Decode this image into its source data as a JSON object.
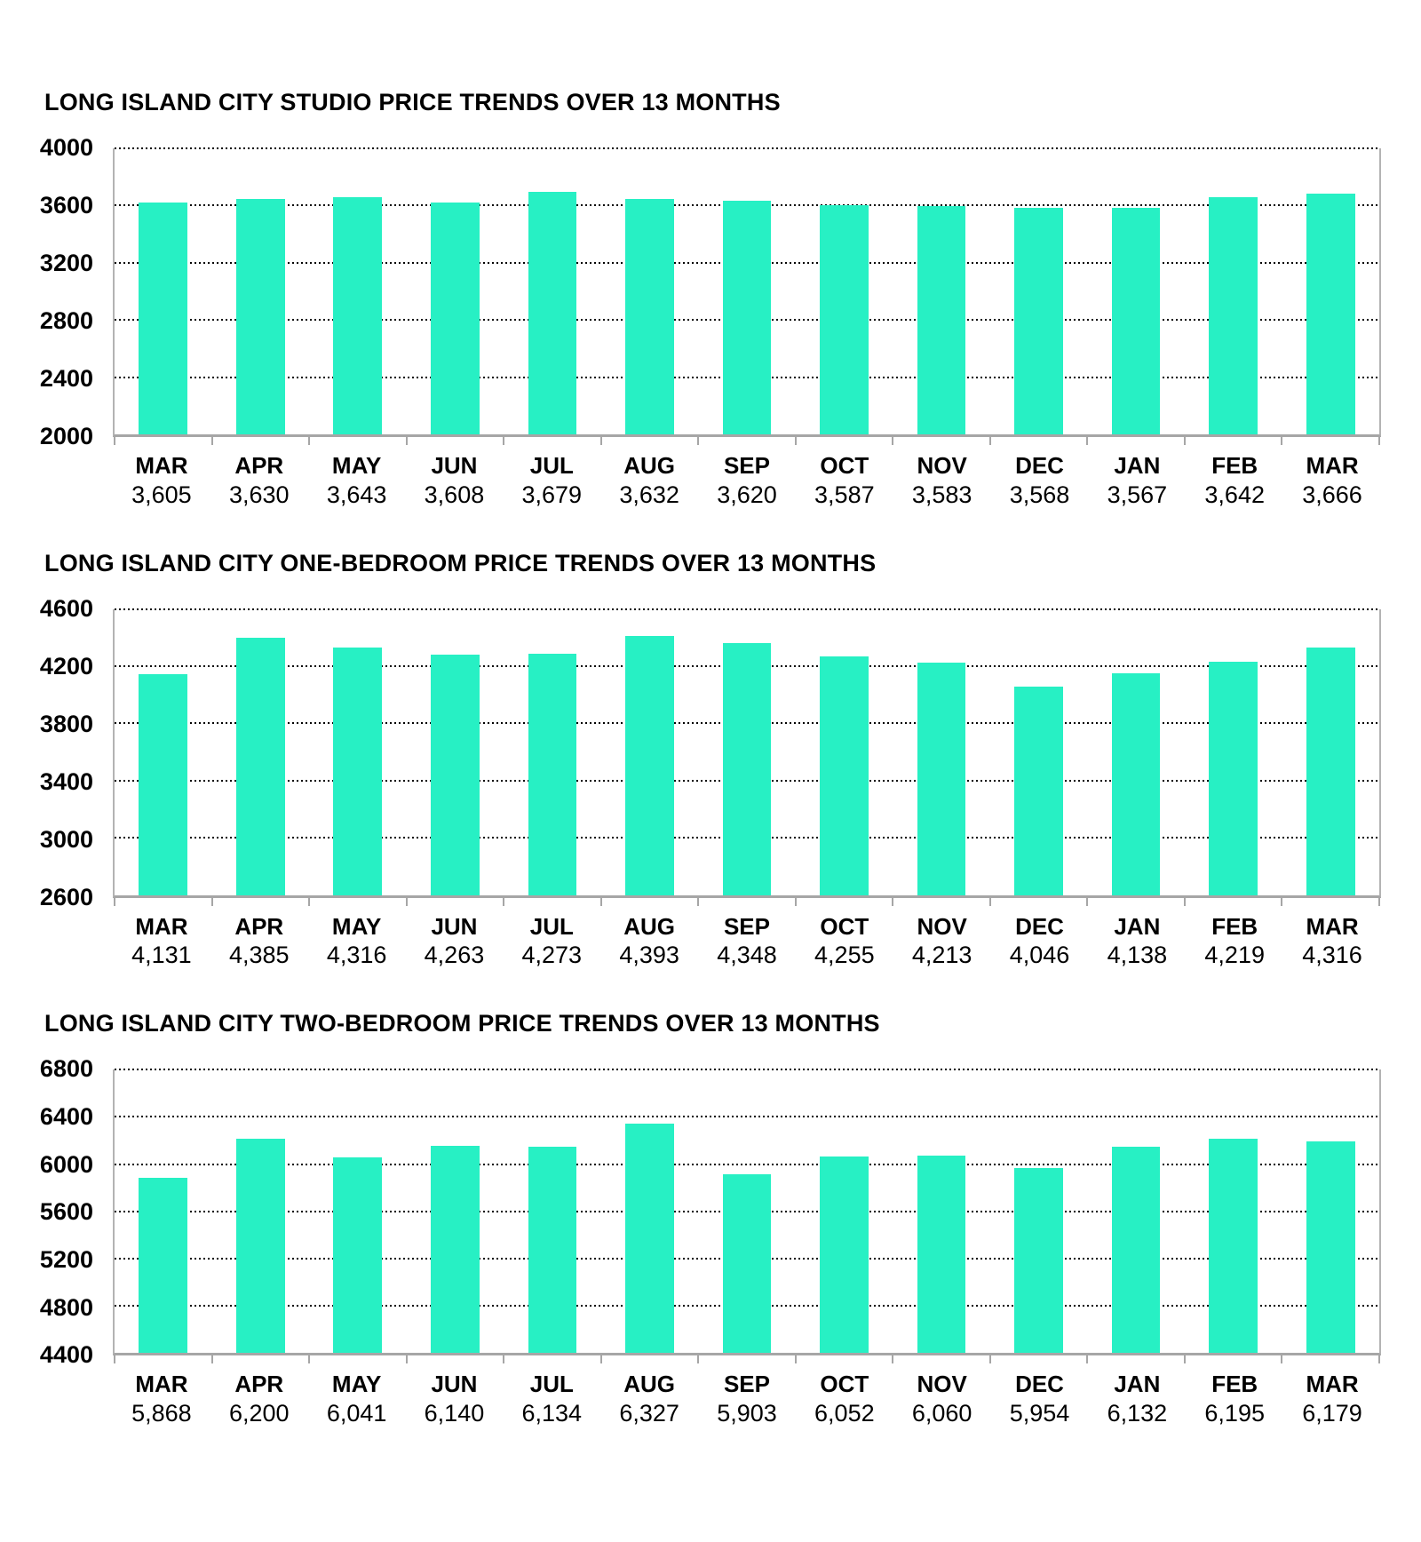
{
  "page": {
    "background": "#ffffff",
    "text_color": "#000000",
    "bar_color": "#27F0C4",
    "axis_color": "#A6A6A6",
    "grid_color": "#000000"
  },
  "chart_data": [
    {
      "type": "bar",
      "title": "LONG ISLAND CITY STUDIO PRICE TRENDS OVER 13 MONTHS",
      "categories": [
        "MAR",
        "APR",
        "MAY",
        "JUN",
        "JUL",
        "AUG",
        "SEP",
        "OCT",
        "NOV",
        "DEC",
        "JAN",
        "FEB",
        "MAR"
      ],
      "values": [
        3605,
        3630,
        3643,
        3608,
        3679,
        3632,
        3620,
        3587,
        3583,
        3568,
        3567,
        3642,
        3666
      ],
      "value_labels": [
        "3,605",
        "3,630",
        "3,643",
        "3,608",
        "3,679",
        "3,632",
        "3,620",
        "3,587",
        "3,583",
        "3,568",
        "3,567",
        "3,642",
        "3,666"
      ],
      "xlabel": "",
      "ylabel": "",
      "ylim": [
        2000,
        4000
      ],
      "yticks": [
        4000,
        3600,
        3200,
        2800,
        2400,
        2000
      ],
      "grid": "dotted-horizontal",
      "legend": "none",
      "bar_color": "#27F0C4"
    },
    {
      "type": "bar",
      "title": "LONG ISLAND CITY ONE-BEDROOM PRICE TRENDS OVER 13 MONTHS",
      "categories": [
        "MAR",
        "APR",
        "MAY",
        "JUN",
        "JUL",
        "AUG",
        "SEP",
        "OCT",
        "NOV",
        "DEC",
        "JAN",
        "FEB",
        "MAR"
      ],
      "values": [
        4131,
        4385,
        4316,
        4263,
        4273,
        4393,
        4348,
        4255,
        4213,
        4046,
        4138,
        4219,
        4316
      ],
      "value_labels": [
        "4,131",
        "4,385",
        "4,316",
        "4,263",
        "4,273",
        "4,393",
        "4,348",
        "4,255",
        "4,213",
        "4,046",
        "4,138",
        "4,219",
        "4,316"
      ],
      "xlabel": "",
      "ylabel": "",
      "ylim": [
        2600,
        4600
      ],
      "yticks": [
        4600,
        4200,
        3800,
        3400,
        3000,
        2600
      ],
      "grid": "dotted-horizontal",
      "legend": "none",
      "bar_color": "#27F0C4"
    },
    {
      "type": "bar",
      "title": "LONG ISLAND CITY TWO-BEDROOM PRICE TRENDS OVER 13 MONTHS",
      "categories": [
        "MAR",
        "APR",
        "MAY",
        "JUN",
        "JUL",
        "AUG",
        "SEP",
        "OCT",
        "NOV",
        "DEC",
        "JAN",
        "FEB",
        "MAR"
      ],
      "values": [
        5868,
        6200,
        6041,
        6140,
        6134,
        6327,
        5903,
        6052,
        6060,
        5954,
        6132,
        6195,
        6179
      ],
      "value_labels": [
        "5,868",
        "6,200",
        "6,041",
        "6,140",
        "6,134",
        "6,327",
        "5,903",
        "6,052",
        "6,060",
        "5,954",
        "6,132",
        "6,195",
        "6,179"
      ],
      "xlabel": "",
      "ylabel": "",
      "ylim": [
        4400,
        6800
      ],
      "yticks": [
        6800,
        6400,
        6000,
        5600,
        5200,
        4800,
        4400
      ],
      "grid": "dotted-horizontal",
      "legend": "none",
      "bar_color": "#27F0C4"
    }
  ]
}
